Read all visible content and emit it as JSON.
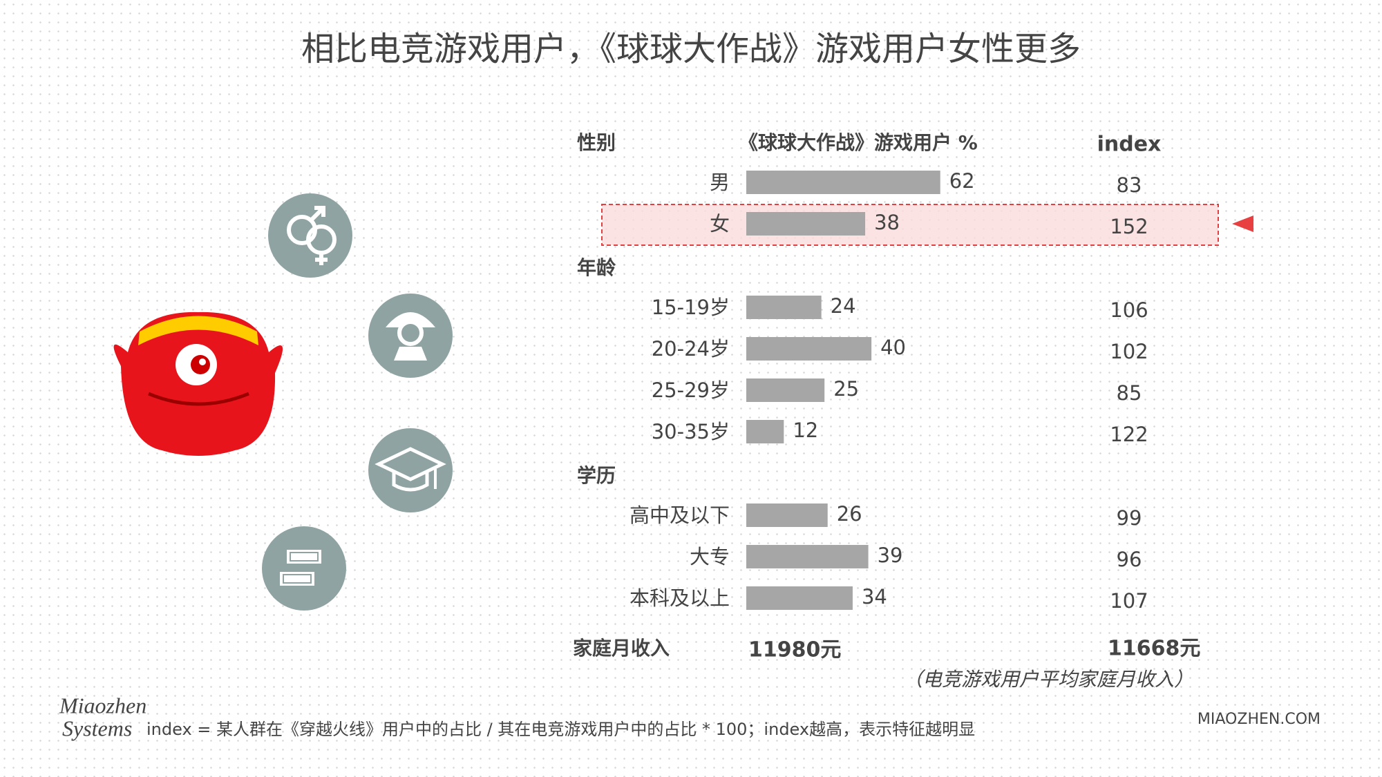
{
  "chart_data": {
    "type": "bar",
    "title": "相比电竞游戏用户，《球球大作战》游戏用户女性更多",
    "value_header": "《球球大作战》游戏用户 %",
    "index_header": "index",
    "color": "#a6a6a6",
    "groups": [
      {
        "name": "性别",
        "categories": [
          "男",
          "女"
        ],
        "values": [
          62,
          38
        ],
        "index": [
          83,
          152
        ]
      },
      {
        "name": "年龄",
        "categories": [
          "15-19岁",
          "20-24岁",
          "25-29岁",
          "30-35岁"
        ],
        "values": [
          24,
          40,
          25,
          12
        ],
        "index": [
          106,
          102,
          85,
          122
        ]
      },
      {
        "name": "学历",
        "categories": [
          "高中及以下",
          "大专",
          "本科及以上"
        ],
        "values": [
          26,
          39,
          34
        ],
        "index": [
          99,
          96,
          107
        ]
      }
    ],
    "income": {
      "label": "家庭月收入",
      "value": "11980元",
      "index_value": "11668元",
      "note": "（电竞游戏用户平均家庭月收入）"
    },
    "footnote": "index = 某人群在《穿越火线》用户中的占比 / 其在电竞游戏用户中的占比 * 100；index越高，表示特征越明显",
    "logo": [
      "Miaozhen",
      "Systems"
    ],
    "website": "MIAOZHEN.COM"
  }
}
